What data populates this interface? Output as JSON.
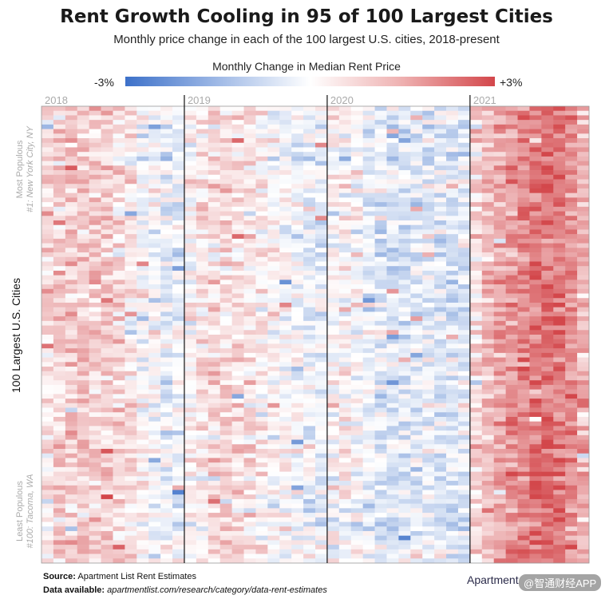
{
  "chart_data": {
    "type": "heatmap",
    "title": "Rent Growth Cooling in 95 of 100 Largest Cities",
    "subtitle": "Monthly price change in each of the 100 largest U.S. cities, 2018-present",
    "legend": {
      "title": "Monthly Change in Median Rent Price",
      "min_label": "-3%",
      "max_label": "+3%",
      "min": -3,
      "max": 3
    },
    "year_labels": [
      "2018",
      "2019",
      "2020",
      "2021"
    ],
    "ylabel": "100 Largest U.S. Cities",
    "top_note": {
      "line1": "Most Populous",
      "line2": "#1: New York City, NY"
    },
    "bottom_note": {
      "line1": "Least Populous",
      "line2": "#100: Tacoma, WA"
    },
    "n_rows": 100,
    "n_cols": 46,
    "year_start_cols": [
      0,
      12,
      24,
      36
    ],
    "month_profile": [
      0.55,
      0.7,
      0.85,
      0.95,
      0.85,
      0.8,
      0.6,
      0.35,
      0.1,
      -0.1,
      -0.25,
      -0.3,
      0.15,
      0.45,
      0.6,
      0.6,
      0.5,
      0.4,
      0.25,
      0.1,
      -0.05,
      -0.15,
      -0.25,
      -0.3,
      0.1,
      0.1,
      -0.05,
      -0.25,
      -0.45,
      -0.6,
      -0.5,
      -0.4,
      -0.35,
      -0.5,
      -0.55,
      -0.45,
      0.6,
      1.1,
      1.5,
      1.75,
      2.0,
      2.2,
      2.3,
      2.15,
      1.8,
      1.25
    ]
  },
  "footer": {
    "source_label": "Source:",
    "source_text": "Apartment List Rent Estimates",
    "available_label": "Data available:",
    "available_text": "apartmentlist.com/research/category/data-rent-estimates",
    "logo_text": "Apartment",
    "watermark_text": "@智通财经APP"
  }
}
